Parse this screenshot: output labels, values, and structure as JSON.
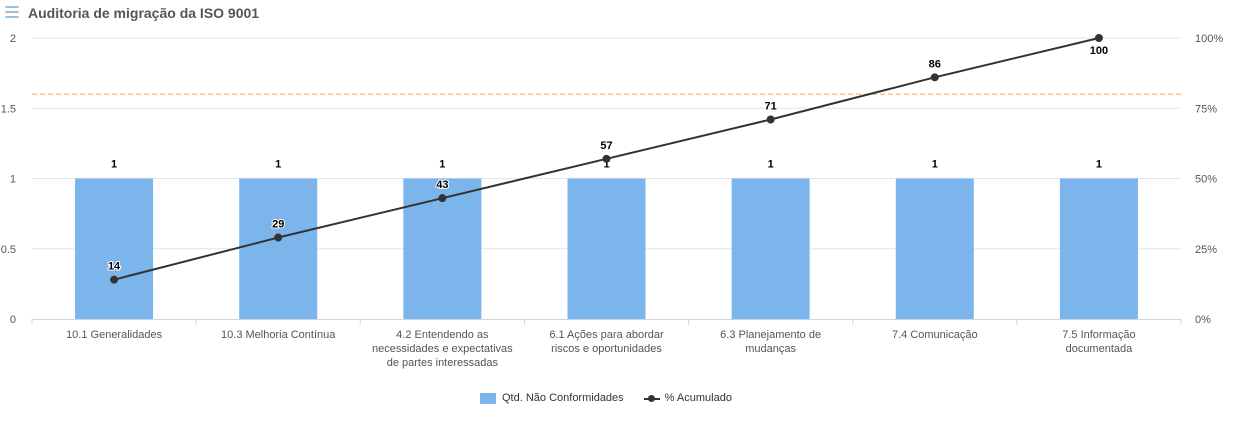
{
  "header": {
    "title": "Auditoria de migração da ISO 9001",
    "menu_icon": "hamburger-menu-icon"
  },
  "colors": {
    "bar": "#7cb5ec",
    "line": "#333333",
    "threshold": "#f7c58a",
    "grid": "#e0e6ee"
  },
  "legend": {
    "bar_label": "Qtd. Não Conformidades",
    "line_label": "% Acumulado"
  },
  "chart_data": {
    "type": "bar",
    "title": "Auditoria de migração da ISO 9001",
    "categories": [
      [
        "10.1 Generalidades"
      ],
      [
        "10.3 Melhoria Contínua"
      ],
      [
        "4.2 Entendendo as",
        "necessidades e expectativas",
        "de partes interessadas"
      ],
      [
        "6.1 Ações para abordar",
        "riscos e oportunidades"
      ],
      [
        "6.3 Planejamento de",
        "mudanças"
      ],
      [
        "7.4 Comunicação"
      ],
      [
        "7.5 Informação",
        "documentada"
      ]
    ],
    "series": [
      {
        "name": "Qtd. Não Conformidades",
        "type": "bar",
        "axis": "left",
        "values": [
          1,
          1,
          1,
          1,
          1,
          1,
          1
        ]
      },
      {
        "name": "% Acumulado",
        "type": "line",
        "axis": "right",
        "values": [
          14,
          29,
          43,
          57,
          71,
          86,
          100
        ]
      }
    ],
    "y_left": {
      "min": 0,
      "max": 2,
      "ticks": [
        "0",
        "0.5",
        "1",
        "1.5",
        "2"
      ]
    },
    "y_right": {
      "min": 0,
      "max": 100,
      "ticks": [
        "0%",
        "25%",
        "50%",
        "75%",
        "100%"
      ]
    },
    "threshold_line": {
      "axis": "right",
      "value": 80,
      "style": "dashed"
    },
    "grid": true,
    "legend_position": "bottom-center"
  }
}
